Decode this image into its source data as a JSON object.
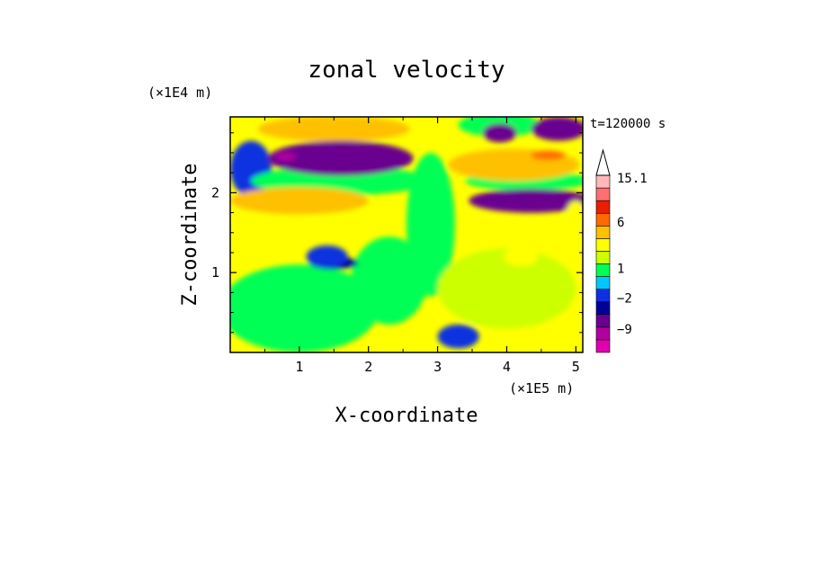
{
  "chart_data": {
    "type": "heatmap",
    "title": "zonal velocity",
    "xlabel": "X-coordinate",
    "ylabel": "Z-coordinate",
    "x_unit": "(×1E5 m)",
    "y_unit": "(×1E4 m)",
    "time_label": "t=120000 s",
    "xlim": [
      0,
      5.1
    ],
    "ylim": [
      0,
      2.95
    ],
    "x_ticks": [
      "1",
      "2",
      "3",
      "4",
      "5"
    ],
    "y_ticks": [
      "1",
      "2"
    ],
    "colorbar": {
      "levels": [
        -12,
        -9,
        -6,
        -2,
        -1,
        0,
        1,
        2,
        6,
        9,
        12,
        15.1
      ],
      "tick_labels": [
        "15.1",
        "6",
        "1",
        "−2",
        "−9"
      ],
      "colors": [
        "#e000b0",
        "#b000a0",
        "#6a0090",
        "#000099",
        "#1030e0",
        "#00c8ff",
        "#00ff55",
        "#ccff00",
        "#ffff00",
        "#ffc000",
        "#ff6a00",
        "#e82000",
        "#ff7070",
        "#ffb8b8"
      ],
      "extend": "max"
    },
    "features": [
      {
        "x": 1.6,
        "z": 2.45,
        "u": -8
      },
      {
        "x": 1.0,
        "z": 1.85,
        "u": 6
      },
      {
        "x": 4.2,
        "z": 2.35,
        "u": 7
      },
      {
        "x": 4.3,
        "z": 1.9,
        "u": -7
      },
      {
        "x": 4.8,
        "z": 2.75,
        "u": -8
      },
      {
        "x": 1.5,
        "z": 1.1,
        "u": -6
      },
      {
        "x": 4.0,
        "z": 0.8,
        "u": 1.5
      },
      {
        "x": 1.0,
        "z": 0.5,
        "u": 0
      }
    ]
  }
}
